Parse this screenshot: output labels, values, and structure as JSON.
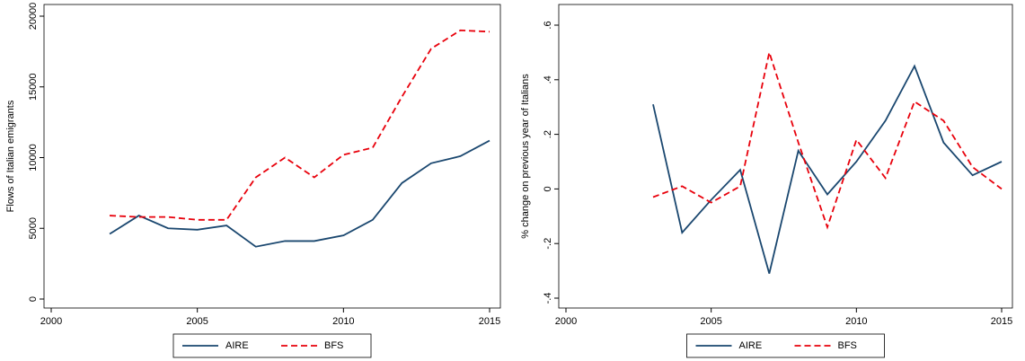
{
  "chart_data": [
    {
      "type": "line",
      "y_label": "Flows of Italian emigrants",
      "x": [
        2002,
        2003,
        2004,
        2005,
        2006,
        2007,
        2008,
        2009,
        2010,
        2011,
        2012,
        2013,
        2014,
        2015
      ],
      "series": [
        {
          "name": "AIRE",
          "color": "#1a476f",
          "style": "solid",
          "values": [
            4600,
            5900,
            5000,
            4900,
            5200,
            3700,
            4100,
            4100,
            4500,
            5600,
            8200,
            9600,
            10100,
            11200
          ]
        },
        {
          "name": "BFS",
          "color": "#e8000b",
          "style": "dashed",
          "values": [
            5900,
            5800,
            5800,
            5600,
            5600,
            8600,
            10000,
            8600,
            10200,
            10700,
            14300,
            17700,
            19000,
            18900
          ]
        }
      ],
      "xlim": [
        2000,
        2015
      ],
      "xticks": [
        2000,
        2005,
        2010,
        2015
      ],
      "ylim": [
        0,
        20000
      ],
      "yticks": [
        0,
        5000,
        10000,
        15000,
        20000
      ],
      "legend": "bottom"
    },
    {
      "type": "line",
      "y_label": "% change on previous year of Italians",
      "x": [
        2003,
        2004,
        2005,
        2006,
        2007,
        2008,
        2009,
        2010,
        2011,
        2012,
        2013,
        2014,
        2015
      ],
      "series": [
        {
          "name": "AIRE",
          "color": "#1a476f",
          "style": "solid",
          "values": [
            0.31,
            -0.16,
            -0.04,
            0.07,
            -0.31,
            0.14,
            -0.02,
            0.1,
            0.25,
            0.45,
            0.17,
            0.05,
            0.1
          ]
        },
        {
          "name": "BFS",
          "color": "#e8000b",
          "style": "dashed",
          "values": [
            -0.03,
            0.01,
            -0.05,
            0.01,
            0.5,
            0.17,
            -0.14,
            0.18,
            0.04,
            0.32,
            0.25,
            0.08,
            0.0
          ]
        }
      ],
      "xlim": [
        2000,
        2015
      ],
      "xticks": [
        2000,
        2005,
        2010,
        2015
      ],
      "ylim": [
        -0.4,
        0.6
      ],
      "yticks": [
        {
          "value": -0.4,
          "label": "-.4"
        },
        {
          "value": -0.2,
          "label": "-.2"
        },
        0,
        {
          "value": 0.2,
          "label": ".2"
        },
        {
          "value": 0.4,
          "label": ".4"
        },
        {
          "value": 0.6,
          "label": ".6"
        }
      ],
      "legend": "bottom"
    }
  ]
}
